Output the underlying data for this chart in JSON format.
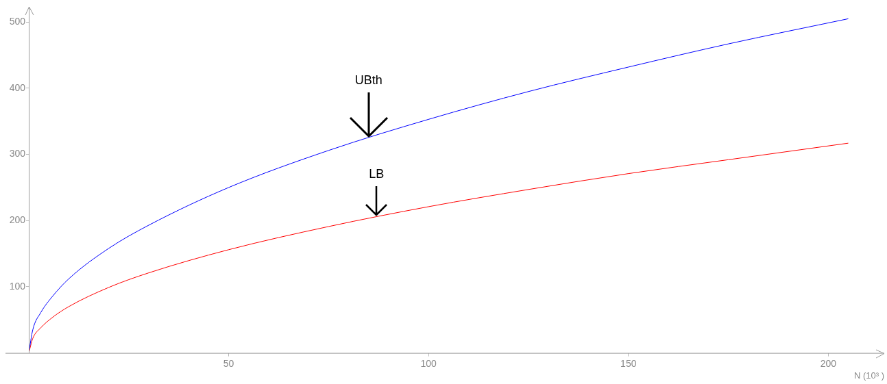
{
  "chart_data": {
    "type": "line",
    "xlabel": "N (10³ )",
    "x": [
      0,
      1,
      3,
      6,
      10,
      20,
      30,
      50,
      75,
      100,
      125,
      150,
      175,
      205
    ],
    "series": [
      {
        "color": "#0000ff",
        "values": [
          0,
          35,
          61,
          86,
          112,
          158,
          193,
          250,
          306,
          353,
          395,
          432,
          467,
          505
        ]
      },
      {
        "color": "#ff0000",
        "values": [
          0,
          22,
          38,
          54,
          70,
          99,
          121,
          156,
          191,
          221,
          247,
          271,
          292,
          317
        ]
      }
    ],
    "annotations": [
      {
        "text": "UBth",
        "x": 85,
        "y": 325
      },
      {
        "text": "LB",
        "x": 87,
        "y": 206
      }
    ],
    "xlim": [
      0,
      214
    ],
    "ylim": [
      0,
      523
    ],
    "xticks": [
      50,
      100,
      150,
      200
    ],
    "yticks": [
      100,
      200,
      300,
      400,
      500
    ],
    "grid": false,
    "legend": false,
    "marker": "none",
    "line_style": "solid"
  }
}
